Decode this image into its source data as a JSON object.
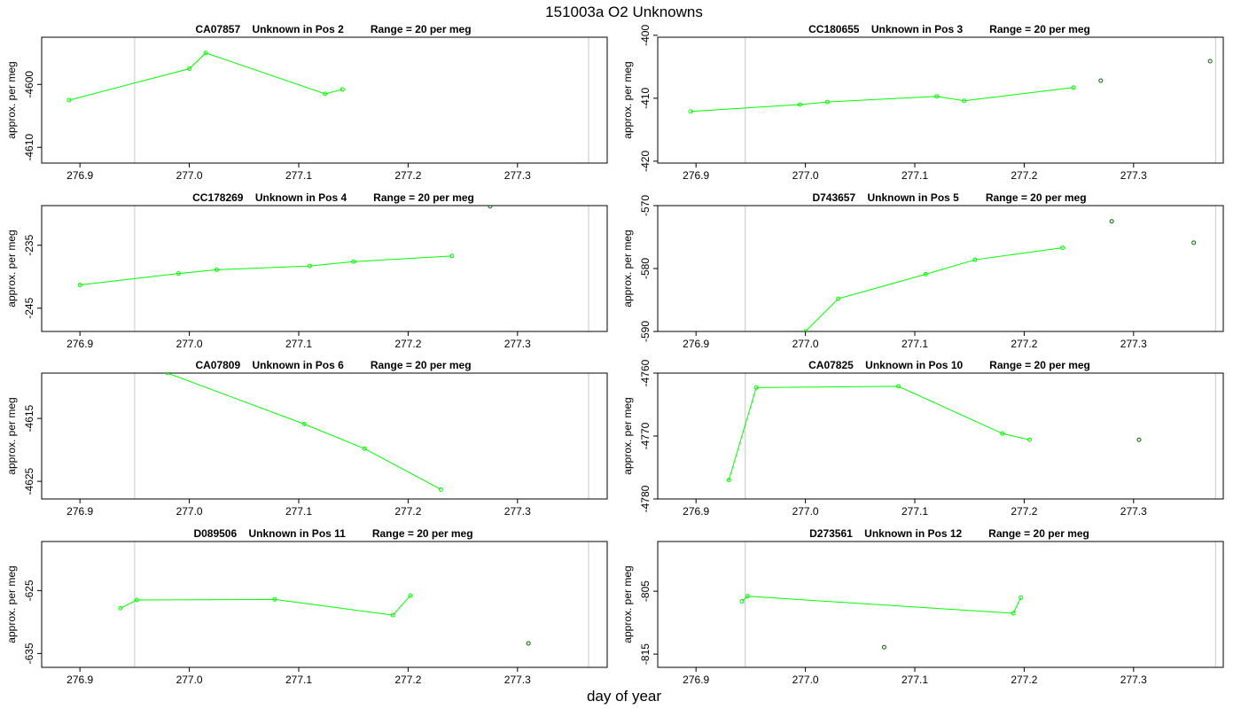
{
  "figure": {
    "title": "151003a  O2 Unknowns",
    "xlabel": "day of year"
  },
  "colors": {
    "series": "#00ff00",
    "gray_points": "#006400",
    "vline": "#c8c8c8"
  },
  "chart_data": [
    {
      "type": "line",
      "title": "CA07857    Unknown in Pos 2         Range = 20 per meg",
      "ylabel": "approx. per meg",
      "xlim": [
        276.865,
        277.382
      ],
      "ylim": [
        -4612.5,
        -4592.5
      ],
      "yticks": [
        -4610,
        -4600
      ],
      "xticks": [
        276.9,
        277.0,
        277.1,
        277.2,
        277.3
      ],
      "vlines": [
        276.95,
        277.365
      ],
      "series": [
        {
          "x": [
            276.89,
            277.0,
            277.015,
            277.124,
            277.14
          ],
          "y": [
            -4602.5,
            -4597.5,
            -4595,
            -4601.5,
            -4600.8
          ]
        }
      ],
      "extra_points": []
    },
    {
      "type": "line",
      "title": "CC180655    Unknown in Pos 3         Range = 20 per meg",
      "ylabel": "approx. per meg",
      "xlim": [
        276.865,
        277.382
      ],
      "ylim": [
        -420.3,
        -400.3
      ],
      "yticks": [
        -420,
        -410,
        -400
      ],
      "xticks": [
        276.9,
        277.0,
        277.1,
        277.2,
        277.3
      ],
      "vlines": [
        276.945,
        277.375
      ],
      "series": [
        {
          "x": [
            276.895,
            276.995,
            277.02,
            277.12,
            277.145,
            277.245
          ],
          "y": [
            -412.1,
            -411.0,
            -410.6,
            -409.7,
            -410.4,
            -408.3
          ]
        }
      ],
      "extra_points": [
        {
          "x": 277.27,
          "y": -407.2
        },
        {
          "x": 277.37,
          "y": -404.1
        }
      ]
    },
    {
      "type": "line",
      "title": "CC178269    Unknown in Pos 4         Range = 20 per meg",
      "ylabel": "approx. per meg",
      "xlim": [
        276.865,
        277.382
      ],
      "ylim": [
        -248.7,
        -228.7
      ],
      "yticks": [
        -245,
        -235
      ],
      "xticks": [
        276.9,
        277.0,
        277.1,
        277.2,
        277.3
      ],
      "vlines": [
        276.95,
        277.365
      ],
      "series": [
        {
          "x": [
            276.9,
            276.99,
            277.025,
            277.11,
            277.15,
            277.24
          ],
          "y": [
            -241.3,
            -239.5,
            -238.9,
            -238.3,
            -237.6,
            -236.7
          ]
        }
      ],
      "extra_points": [
        {
          "x": 277.275,
          "y": -228.8
        }
      ]
    },
    {
      "type": "line",
      "title": "D743657    Unknown in Pos 5         Range = 20 per meg",
      "ylabel": "approx. per meg",
      "xlim": [
        276.865,
        277.382
      ],
      "ylim": [
        -590.0,
        -570.0
      ],
      "yticks": [
        -590,
        -580,
        -570
      ],
      "xticks": [
        276.9,
        277.0,
        277.1,
        277.2,
        277.3
      ],
      "vlines": [
        276.945,
        277.375
      ],
      "series": [
        {
          "x": [
            277.0,
            277.03,
            277.11,
            277.155,
            277.235
          ],
          "y": [
            -590.0,
            -584.8,
            -580.9,
            -578.6,
            -576.7
          ]
        }
      ],
      "extra_points": [
        {
          "x": 277.28,
          "y": -572.5
        },
        {
          "x": 277.355,
          "y": -575.9
        }
      ]
    },
    {
      "type": "line",
      "title": "CA07809    Unknown in Pos 6         Range = 20 per meg",
      "ylabel": "approx. per meg",
      "xlim": [
        276.865,
        277.382
      ],
      "ylim": [
        -4627.8,
        -4607.8
      ],
      "yticks": [
        -4625,
        -4615
      ],
      "xticks": [
        276.9,
        277.0,
        277.1,
        277.2,
        277.3
      ],
      "vlines": [
        276.95,
        277.365
      ],
      "series": [
        {
          "x": [
            276.98,
            277.105,
            277.16,
            277.23
          ],
          "y": [
            -4607.8,
            -4615.9,
            -4619.8,
            -4626.3
          ]
        }
      ],
      "extra_points": []
    },
    {
      "type": "line",
      "title": "CA07825    Unknown in Pos 10         Range = 20 per meg",
      "ylabel": "approx. per meg",
      "xlim": [
        276.865,
        277.382
      ],
      "ylim": [
        -4780.0,
        -4760.0
      ],
      "yticks": [
        -4780,
        -4770,
        -4760
      ],
      "xticks": [
        276.9,
        277.0,
        277.1,
        277.2,
        277.3
      ],
      "vlines": [
        276.945,
        277.375
      ],
      "series": [
        {
          "x": [
            276.93,
            276.955,
            277.085,
            277.18,
            277.205
          ],
          "y": [
            -4777.0,
            -4762.3,
            -4762.1,
            -4769.6,
            -4770.6
          ]
        }
      ],
      "extra_points": [
        {
          "x": 277.305,
          "y": -4770.6
        }
      ]
    },
    {
      "type": "line",
      "title": "D089506    Unknown in Pos 11         Range = 20 per meg",
      "ylabel": "approx. per meg",
      "xlim": [
        276.865,
        277.382
      ],
      "ylim": [
        -637.2,
        -617.2
      ],
      "yticks": [
        -635,
        -625
      ],
      "xticks": [
        276.9,
        277.0,
        277.1,
        277.2,
        277.3
      ],
      "vlines": [
        276.95,
        277.365
      ],
      "series": [
        {
          "x": [
            276.937,
            276.952,
            277.078,
            277.186,
            277.202
          ],
          "y": [
            -627.8,
            -626.5,
            -626.4,
            -628.9,
            -625.8
          ]
        }
      ],
      "extra_points": [
        {
          "x": 277.31,
          "y": -633.4
        }
      ]
    },
    {
      "type": "line",
      "title": "D273561    Unknown in Pos 12         Range = 20 per meg",
      "ylabel": "approx. per meg",
      "xlim": [
        276.865,
        277.382
      ],
      "ylim": [
        -817.1,
        -797.1
      ],
      "yticks": [
        -815,
        -805
      ],
      "xticks": [
        276.9,
        277.0,
        277.1,
        277.2,
        277.3
      ],
      "vlines": [
        276.945,
        277.375
      ],
      "series": [
        {
          "x": [
            276.942,
            276.947,
            277.19,
            277.197
          ],
          "y": [
            -806.6,
            -805.8,
            -808.5,
            -806.0
          ]
        }
      ],
      "extra_points": [
        {
          "x": 277.072,
          "y": -813.9
        }
      ]
    }
  ]
}
